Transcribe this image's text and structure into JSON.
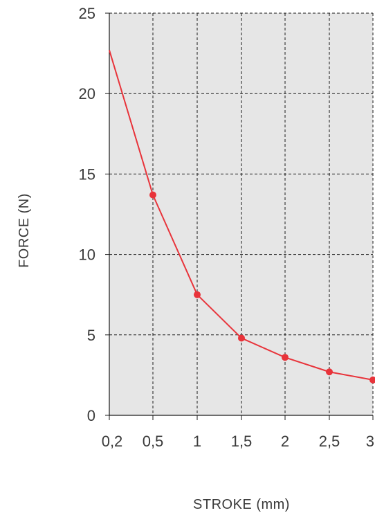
{
  "chart_data": {
    "type": "line",
    "xlabel": "STROKE (mm)",
    "ylabel": "FORCE (N)",
    "x_ticks": [
      "0,2",
      "0,5",
      "1",
      "1,5",
      "2",
      "2,5",
      "3"
    ],
    "y_ticks": [
      "0",
      "5",
      "10",
      "15",
      "20",
      "25"
    ],
    "ylim": [
      0,
      25
    ],
    "x_scale": "categorical-equal-spacing",
    "grid": true,
    "plot_background": "#e6e6e6",
    "series": [
      {
        "color": "#e8333a",
        "points": [
          {
            "x": "0,2",
            "y": 22.7,
            "marker": false
          },
          {
            "x": "0,5",
            "y": 13.7,
            "marker": true
          },
          {
            "x": "1",
            "y": 7.5,
            "marker": true
          },
          {
            "x": "1,5",
            "y": 4.8,
            "marker": true
          },
          {
            "x": "2",
            "y": 3.6,
            "marker": true
          },
          {
            "x": "2,5",
            "y": 2.7,
            "marker": true
          },
          {
            "x": "3",
            "y": 2.2,
            "marker": true
          }
        ]
      }
    ]
  }
}
